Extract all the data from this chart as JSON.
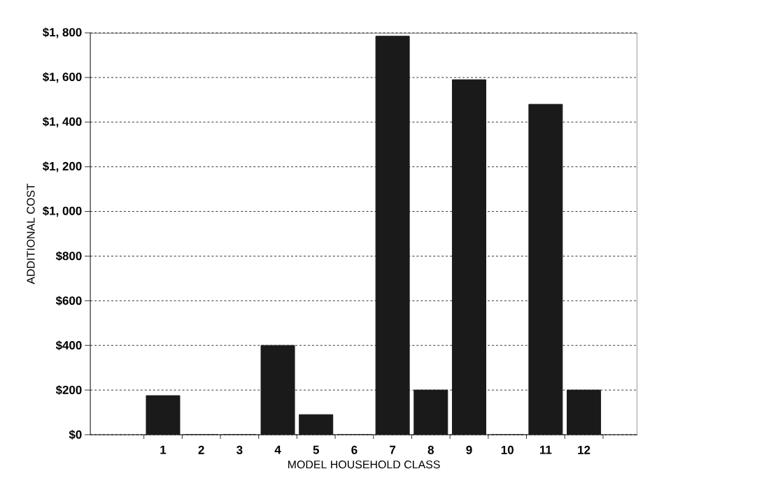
{
  "chart_data": {
    "type": "bar",
    "xlabel": "MODEL HOUSEHOLD CLASS",
    "ylabel": "ADDITIONAL COST",
    "categories": [
      "1",
      "2",
      "3",
      "4",
      "5",
      "6",
      "7",
      "8",
      "9",
      "10",
      "11",
      "12"
    ],
    "values": [
      175,
      0,
      0,
      400,
      90,
      0,
      1785,
      200,
      1590,
      0,
      1480,
      200
    ],
    "color": "#1a1a1a",
    "ylim": [
      0,
      1800
    ],
    "yticks": [
      {
        "value": 0,
        "label": "$0"
      },
      {
        "value": 200,
        "label": "$200"
      },
      {
        "value": 400,
        "label": "$400"
      },
      {
        "value": 600,
        "label": "$600"
      },
      {
        "value": 800,
        "label": "$800"
      },
      {
        "value": 1000,
        "label": "$1, 000"
      },
      {
        "value": 1200,
        "label": "$1, 200"
      },
      {
        "value": 1400,
        "label": "$1, 400"
      },
      {
        "value": 1600,
        "label": "$1, 600"
      },
      {
        "value": 1800,
        "label": "$1, 800"
      }
    ],
    "grid": "y"
  }
}
